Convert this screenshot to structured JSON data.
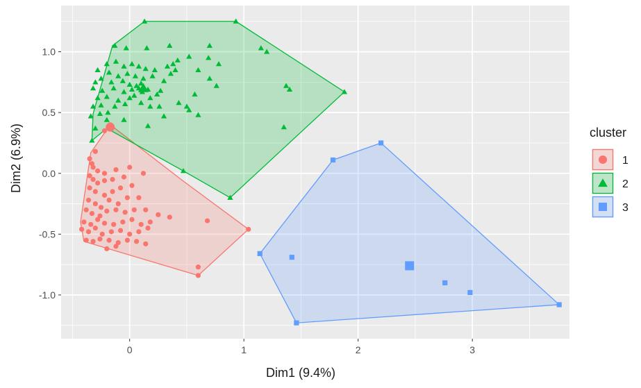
{
  "chart_data": {
    "type": "scatter",
    "xlabel": "Dim1 (9.4%)",
    "ylabel": "Dim2 (6.9%)",
    "xlim": [
      -0.6,
      3.85
    ],
    "ylim": [
      -1.36,
      1.38
    ],
    "x_ticks": [
      0,
      1,
      2,
      3
    ],
    "y_ticks": [
      -1.0,
      -0.5,
      0.0,
      0.5,
      1.0
    ],
    "x_tick_labels": [
      "0",
      "1",
      "2",
      "3"
    ],
    "y_tick_labels": [
      "-1.0",
      "-0.5",
      "0.0",
      "0.5",
      "1.0"
    ],
    "grid": true,
    "panel_background": "#ebebeb",
    "legend": {
      "title": "cluster",
      "position": "right"
    },
    "series": [
      {
        "name": "1",
        "color": "#f8766d",
        "shape": "circle",
        "hull": [
          [
            -0.17,
            0.4
          ],
          [
            0.45,
            -0.05
          ],
          [
            1.04,
            -0.46
          ],
          [
            0.6,
            -0.84
          ],
          [
            -0.4,
            -0.56
          ],
          [
            -0.43,
            -0.4
          ],
          [
            -0.34,
            0.17
          ]
        ],
        "centroid": [
          -0.17,
          0.38
        ],
        "points": [
          [
            -0.17,
            0.4
          ],
          [
            -0.22,
            0.35
          ],
          [
            -0.3,
            0.18
          ],
          [
            -0.35,
            0.12
          ],
          [
            -0.33,
            0.08
          ],
          [
            -0.32,
            0.05
          ],
          [
            -0.28,
            0.02
          ],
          [
            -0.22,
            0.0
          ],
          [
            -0.12,
            0.03
          ],
          [
            0.0,
            0.05
          ],
          [
            -0.35,
            -0.02
          ],
          [
            -0.32,
            -0.05
          ],
          [
            -0.28,
            -0.08
          ],
          [
            -0.22,
            -0.06
          ],
          [
            -0.15,
            -0.05
          ],
          [
            -0.05,
            -0.03
          ],
          [
            0.12,
            0.0
          ],
          [
            -0.35,
            -0.12
          ],
          [
            -0.3,
            -0.15
          ],
          [
            -0.22,
            -0.18
          ],
          [
            -0.15,
            -0.15
          ],
          [
            -0.08,
            -0.12
          ],
          [
            0.02,
            -0.1
          ],
          [
            -0.36,
            -0.22
          ],
          [
            -0.3,
            -0.25
          ],
          [
            -0.25,
            -0.28
          ],
          [
            -0.18,
            -0.22
          ],
          [
            -0.1,
            -0.25
          ],
          [
            -0.02,
            -0.2
          ],
          [
            0.08,
            -0.2
          ],
          [
            -0.38,
            -0.3
          ],
          [
            -0.33,
            -0.33
          ],
          [
            -0.26,
            -0.35
          ],
          [
            -0.2,
            -0.31
          ],
          [
            -0.12,
            -0.3
          ],
          [
            -0.04,
            -0.32
          ],
          [
            0.04,
            -0.3
          ],
          [
            0.14,
            -0.3
          ],
          [
            0.25,
            -0.34
          ],
          [
            -0.4,
            -0.4
          ],
          [
            -0.34,
            -0.42
          ],
          [
            -0.28,
            -0.38
          ],
          [
            -0.22,
            -0.41
          ],
          [
            -0.14,
            -0.42
          ],
          [
            -0.06,
            -0.4
          ],
          [
            0.02,
            -0.38
          ],
          [
            0.1,
            -0.42
          ],
          [
            0.18,
            -0.4
          ],
          [
            0.35,
            -0.36
          ],
          [
            -0.42,
            -0.46
          ],
          [
            -0.36,
            -0.48
          ],
          [
            -0.3,
            -0.45
          ],
          [
            -0.24,
            -0.5
          ],
          [
            -0.16,
            -0.48
          ],
          [
            -0.08,
            -0.47
          ],
          [
            0.0,
            -0.5
          ],
          [
            0.08,
            -0.48
          ],
          [
            0.16,
            -0.45
          ],
          [
            -0.38,
            -0.55
          ],
          [
            -0.32,
            -0.56
          ],
          [
            -0.26,
            -0.54
          ],
          [
            -0.18,
            -0.55
          ],
          [
            -0.1,
            -0.57
          ],
          [
            -0.02,
            -0.55
          ],
          [
            0.06,
            -0.56
          ],
          [
            0.14,
            -0.58
          ],
          [
            -0.2,
            -0.62
          ],
          [
            -0.12,
            -0.6
          ],
          [
            0.68,
            -0.39
          ],
          [
            1.04,
            -0.46
          ],
          [
            0.6,
            -0.77
          ],
          [
            0.6,
            -0.84
          ]
        ]
      },
      {
        "name": "2",
        "color": "#00ba38",
        "shape": "triangle",
        "hull": [
          [
            0.13,
            1.25
          ],
          [
            0.93,
            1.25
          ],
          [
            1.88,
            0.67
          ],
          [
            0.88,
            -0.2
          ],
          [
            0.47,
            0.02
          ],
          [
            -0.2,
            0.37
          ],
          [
            -0.33,
            0.27
          ],
          [
            -0.32,
            0.49
          ],
          [
            -0.15,
            1.05
          ]
        ],
        "centroid": [
          0.12,
          0.7
        ],
        "points": [
          [
            0.13,
            1.25
          ],
          [
            0.93,
            1.25
          ],
          [
            -0.13,
            1.05
          ],
          [
            -0.03,
            1.03
          ],
          [
            0.15,
            1.03
          ],
          [
            0.35,
            1.05
          ],
          [
            0.7,
            1.05
          ],
          [
            1.15,
            1.03
          ],
          [
            1.2,
            1.0
          ],
          [
            0.52,
            0.96
          ],
          [
            0.69,
            0.95
          ],
          [
            -0.2,
            0.9
          ],
          [
            -0.12,
            0.92
          ],
          [
            -0.05,
            0.88
          ],
          [
            0.02,
            0.9
          ],
          [
            0.08,
            0.88
          ],
          [
            0.14,
            0.86
          ],
          [
            0.22,
            0.85
          ],
          [
            0.33,
            0.88
          ],
          [
            0.38,
            0.9
          ],
          [
            0.42,
            0.93
          ],
          [
            0.6,
            0.85
          ],
          [
            0.78,
            0.9
          ],
          [
            -0.28,
            0.85
          ],
          [
            -0.18,
            0.83
          ],
          [
            -0.1,
            0.8
          ],
          [
            -0.02,
            0.82
          ],
          [
            0.05,
            0.8
          ],
          [
            0.12,
            0.78
          ],
          [
            0.2,
            0.8
          ],
          [
            0.36,
            0.82
          ],
          [
            0.4,
            0.85
          ],
          [
            -0.3,
            0.75
          ],
          [
            -0.25,
            0.78
          ],
          [
            -0.16,
            0.75
          ],
          [
            -0.06,
            0.76
          ],
          [
            0.0,
            0.73
          ],
          [
            0.06,
            0.72
          ],
          [
            0.1,
            0.74
          ],
          [
            0.3,
            0.76
          ],
          [
            0.7,
            0.78
          ],
          [
            -0.32,
            0.7
          ],
          [
            -0.24,
            0.68
          ],
          [
            -0.14,
            0.7
          ],
          [
            -0.05,
            0.67
          ],
          [
            0.02,
            0.69
          ],
          [
            0.08,
            0.7
          ],
          [
            0.12,
            0.71
          ],
          [
            0.16,
            0.69
          ],
          [
            0.27,
            0.68
          ],
          [
            0.76,
            0.72
          ],
          [
            1.37,
            0.72
          ],
          [
            1.4,
            0.69
          ],
          [
            -0.28,
            0.62
          ],
          [
            -0.2,
            0.63
          ],
          [
            -0.1,
            0.6
          ],
          [
            0.0,
            0.62
          ],
          [
            0.04,
            0.64
          ],
          [
            0.11,
            0.67
          ],
          [
            0.18,
            0.62
          ],
          [
            0.24,
            0.65
          ],
          [
            0.57,
            0.65
          ],
          [
            1.88,
            0.67
          ],
          [
            -0.32,
            0.55
          ],
          [
            -0.25,
            0.56
          ],
          [
            -0.13,
            0.55
          ],
          [
            -0.04,
            0.57
          ],
          [
            0.1,
            0.58
          ],
          [
            0.43,
            0.58
          ],
          [
            -0.34,
            0.47
          ],
          [
            -0.26,
            0.49
          ],
          [
            -0.19,
            0.5
          ],
          [
            0.18,
            0.55
          ],
          [
            0.26,
            0.55
          ],
          [
            0.5,
            0.55
          ],
          [
            0.52,
            0.52
          ],
          [
            -0.2,
            0.44
          ],
          [
            -0.05,
            0.44
          ],
          [
            0.3,
            0.47
          ],
          [
            0.6,
            0.48
          ],
          [
            -0.3,
            0.37
          ],
          [
            0.16,
            0.39
          ],
          [
            1.35,
            0.38
          ],
          [
            -0.33,
            0.27
          ],
          [
            0.47,
            0.02
          ],
          [
            0.88,
            -0.2
          ]
        ]
      },
      {
        "name": "3",
        "color": "#619cff",
        "shape": "square",
        "hull": [
          [
            2.2,
            0.25
          ],
          [
            3.76,
            -1.08
          ],
          [
            1.46,
            -1.23
          ],
          [
            1.14,
            -0.66
          ],
          [
            1.78,
            0.11
          ]
        ],
        "centroid": [
          2.45,
          -0.76
        ],
        "points": [
          [
            2.2,
            0.25
          ],
          [
            1.78,
            0.11
          ],
          [
            1.14,
            -0.66
          ],
          [
            1.42,
            -0.69
          ],
          [
            2.76,
            -0.9
          ],
          [
            2.98,
            -0.98
          ],
          [
            3.76,
            -1.08
          ],
          [
            1.46,
            -1.23
          ]
        ]
      }
    ]
  }
}
